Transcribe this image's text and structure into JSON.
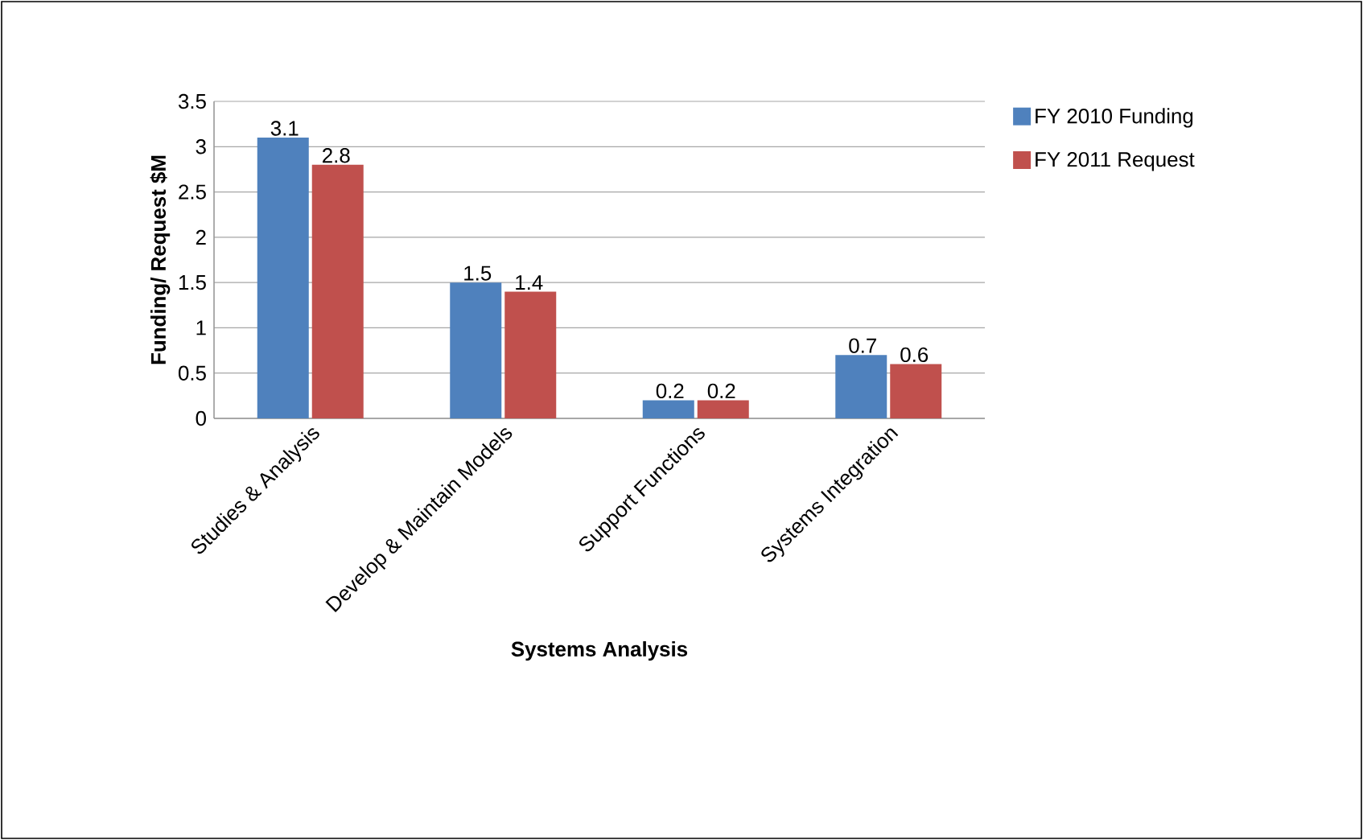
{
  "chart_data": {
    "type": "bar",
    "xlabel": "Systems Analysis",
    "ylabel": "Funding/ Request $M",
    "categories": [
      "Studies & Analysis",
      "Develop & Maintain Models",
      "Support Functions",
      "Systems Integration"
    ],
    "series": [
      {
        "name": "FY 2010 Funding",
        "color": "#4f81bd",
        "values": [
          3.1,
          1.5,
          0.2,
          0.7
        ]
      },
      {
        "name": "FY 2011 Request",
        "color": "#c0504d",
        "values": [
          2.8,
          1.4,
          0.2,
          0.6
        ]
      }
    ],
    "ylim": [
      0,
      3.5
    ],
    "yticks": [
      0,
      0.5,
      1,
      1.5,
      2,
      2.5,
      3,
      3.5
    ],
    "grid": "y",
    "legend": "right",
    "data_labels": true
  }
}
